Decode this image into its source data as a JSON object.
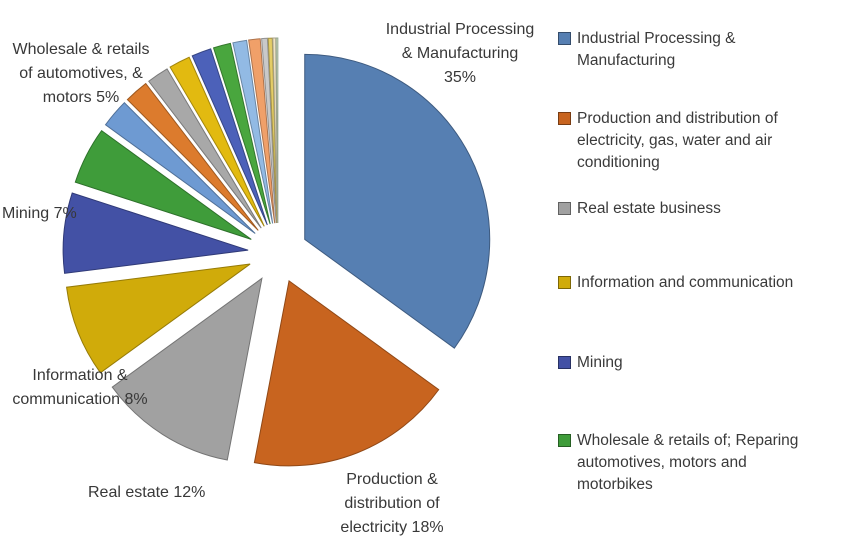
{
  "chart_data": {
    "type": "pie",
    "title": "",
    "legend_position": "right",
    "style": "exploded",
    "slices": [
      {
        "label": "Industrial Processing & Manufacturing",
        "value": 35,
        "color": "#567fb2"
      },
      {
        "label": "Production & distribution of electricity",
        "value": 18,
        "color": "#c8641f"
      },
      {
        "label": "Real estate",
        "value": 12,
        "color": "#a1a1a1"
      },
      {
        "label": "Information & communication",
        "value": 8,
        "color": "#d0ab0a"
      },
      {
        "label": "Mining",
        "value": 7,
        "color": "#4351a5"
      },
      {
        "label": "Wholesale & retails of automotives, & motors",
        "value": 5,
        "color": "#3f9c3a"
      },
      {
        "label": "",
        "value": 2.5,
        "color": "#6e9ad2"
      },
      {
        "label": "",
        "value": 2.1,
        "color": "#dc7b2d"
      },
      {
        "label": "",
        "value": 1.9,
        "color": "#a8a8a8"
      },
      {
        "label": "",
        "value": 1.85,
        "color": "#e2ba10"
      },
      {
        "label": "",
        "value": 1.7,
        "color": "#4c61b9"
      },
      {
        "label": "",
        "value": 1.5,
        "color": "#49a63e"
      },
      {
        "label": "",
        "value": 1.2,
        "color": "#92bae4"
      },
      {
        "label": "",
        "value": 1.0,
        "color": "#f0a069"
      },
      {
        "label": "",
        "value": 0.5,
        "color": "#c9c9c9"
      },
      {
        "label": "",
        "value": 0.35,
        "color": "#e4cd66"
      },
      {
        "label": "",
        "value": 0.25,
        "color": "#eee3c3"
      },
      {
        "label": "",
        "value": 0.15,
        "color": "#d0e4c5"
      }
    ]
  },
  "callouts": {
    "industrial": "Industrial Processing\n& Manufacturing\n35%",
    "wholesale": "Wholesale & retails\nof automotives, &\nmotors 5%",
    "mining": "Mining 7%",
    "information": "Information  &\ncommunication 8%",
    "real_estate": "Real estate 12%",
    "production": "Production &\ndistribution of\nelectricity 18%"
  },
  "legend": {
    "items": [
      {
        "label": "Industrial Processing &\nManufacturing",
        "color": "#567fb2"
      },
      {
        "label": "Production and distribution of\nelectricity, gas, water and air\nconditioning",
        "color": "#c8641f"
      },
      {
        "label": "Real estate business",
        "color": "#a1a1a1"
      },
      {
        "label": "Information and communication",
        "color": "#d0ab0a"
      },
      {
        "label": "Mining",
        "color": "#4351a5"
      },
      {
        "label": "Wholesale & retails of; Reparing\nautomotives, motors and\nmotorbikes",
        "color": "#3f9c3a"
      }
    ]
  }
}
